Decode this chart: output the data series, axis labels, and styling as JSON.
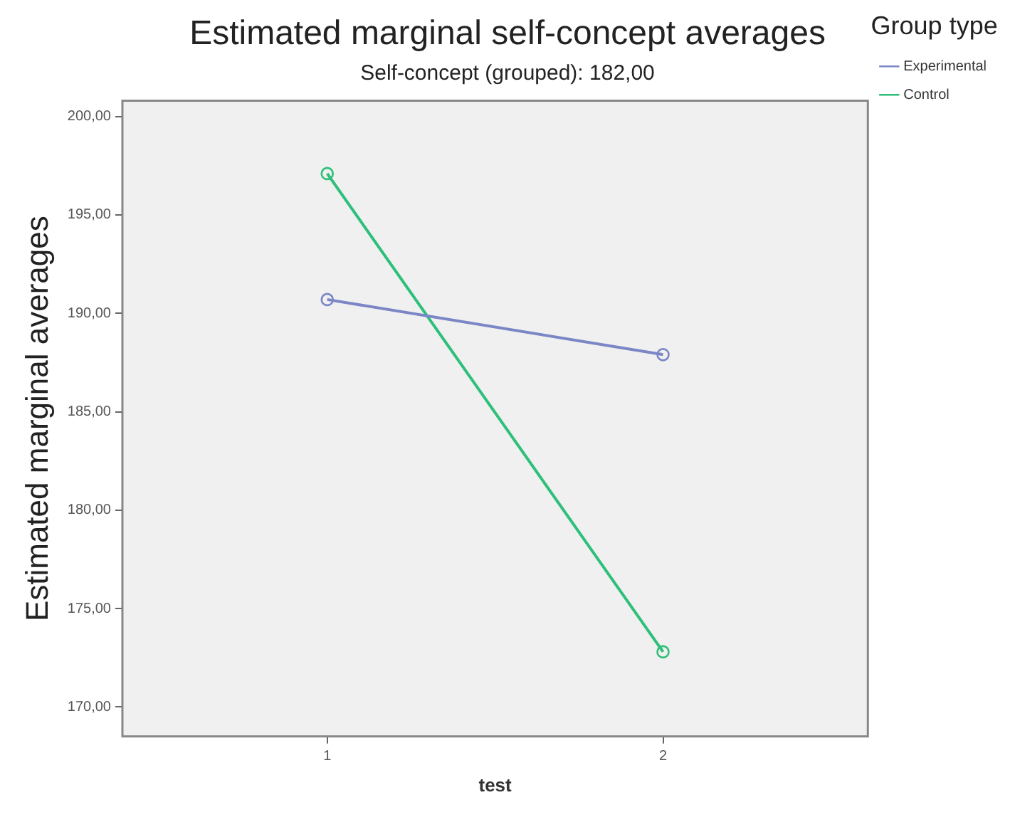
{
  "chart_data": {
    "type": "line",
    "title": "Estimated marginal self-concept averages",
    "subtitle": "Self-concept (grouped): 182,00",
    "xlabel": "test",
    "ylabel": "Estimated marginal averages",
    "legend_title": "Group type",
    "x": [
      1,
      2
    ],
    "series": [
      {
        "name": "Experimental",
        "color": "#7b86c6",
        "values": [
          190.7,
          187.9
        ]
      },
      {
        "name": "Control",
        "color": "#2ebf7a",
        "values": [
          197.1,
          172.8
        ]
      }
    ],
    "xlim": [
      0.39,
      2.61
    ],
    "xticks": [
      1,
      2
    ],
    "ylim": [
      168.5,
      200.8
    ],
    "yticks": [
      {
        "value": 170,
        "label": "170,00"
      },
      {
        "value": 175,
        "label": "175,00"
      },
      {
        "value": 180,
        "label": "180,00"
      },
      {
        "value": 185,
        "label": "185,00"
      },
      {
        "value": 190,
        "label": "190,00"
      },
      {
        "value": 195,
        "label": "195,00"
      },
      {
        "value": 200,
        "label": "200,00"
      }
    ],
    "grid": false,
    "legend": "top right",
    "marker": "circle",
    "line_style": "solid"
  }
}
